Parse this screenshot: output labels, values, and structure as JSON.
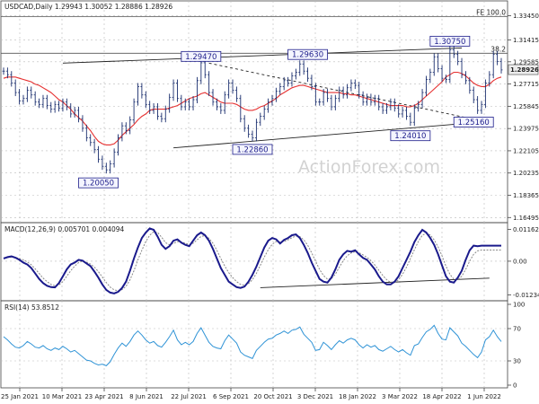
{
  "chart_data": {
    "type": "line",
    "symbol_header": "USDCAD,Daily  1.29943 1.30052 1.28886 1.28926",
    "watermark": "ActionForex.com",
    "colors": {
      "price": "#1a2e6e",
      "ema": "#e63030",
      "macd": "#1a1a8c",
      "signal": "#888888",
      "rsi": "#2f93d6",
      "trend": "#222222"
    },
    "x_tick_labels": [
      "25 Jan 2021",
      "10 Mar 2021",
      "23 Apr 2021",
      "8 Jun 2021",
      "22 Jul 2021",
      "6 Sep 2021",
      "20 Oct 2021",
      "3 Dec 2021",
      "18 Jan 2022",
      "3 Mar 2022",
      "18 Apr 2022",
      "1 Jun 2022"
    ],
    "price_panel": {
      "y_ticks": [
        "1.33450",
        "1.31415",
        "1.29585",
        "1.27715",
        "1.25845",
        "1.23975",
        "1.22105",
        "1.20235",
        "1.18365",
        "1.16495"
      ],
      "ylim": [
        1.1629,
        1.344
      ],
      "current_price": "1.28926",
      "fe_label": "FE 100.0",
      "fe_level": 1.3338,
      "fib_label": "38.2",
      "fib_level": 1.303,
      "annotations": [
        {
          "text": "1.20050",
          "price": 1.2005,
          "date_index": 24
        },
        {
          "text": "1.29470",
          "price": 1.2947,
          "date_index": 50
        },
        {
          "text": "1.22860",
          "price": 1.2286,
          "date_index": 63
        },
        {
          "text": "1.29630",
          "price": 1.2963,
          "date_index": 77
        },
        {
          "text": "1.24010",
          "price": 1.2401,
          "date_index": 103
        },
        {
          "text": "1.30750",
          "price": 1.3075,
          "date_index": 113
        },
        {
          "text": "1.25160",
          "price": 1.2516,
          "date_index": 119
        }
      ],
      "trendlines": [
        {
          "from": [
            15,
            1.2947
          ],
          "to": [
            116,
            1.3075
          ]
        },
        {
          "from": [
            43,
            1.2235
          ],
          "to": [
            122,
            1.2455
          ]
        },
        {
          "from": [
            52,
            1.2947
          ],
          "to": [
            122,
            1.2455
          ]
        }
      ],
      "close": [
        1.288,
        1.285,
        1.278,
        1.27,
        1.263,
        1.265,
        1.272,
        1.268,
        1.262,
        1.26,
        1.265,
        1.259,
        1.256,
        1.26,
        1.257,
        1.262,
        1.258,
        1.252,
        1.255,
        1.248,
        1.24,
        1.232,
        1.228,
        1.222,
        1.214,
        1.208,
        1.205,
        1.21,
        1.22,
        1.232,
        1.242,
        1.238,
        1.247,
        1.262,
        1.275,
        1.268,
        1.26,
        1.255,
        1.258,
        1.25,
        1.248,
        1.256,
        1.266,
        1.278,
        1.265,
        1.258,
        1.262,
        1.258,
        1.264,
        1.28,
        1.295,
        1.285,
        1.27,
        1.262,
        1.258,
        1.255,
        1.268,
        1.278,
        1.272,
        1.265,
        1.248,
        1.24,
        1.235,
        1.232,
        1.245,
        1.25,
        1.256,
        1.262,
        1.265,
        1.271,
        1.275,
        1.28,
        1.278,
        1.284,
        1.287,
        1.294,
        1.288,
        1.282,
        1.275,
        1.262,
        1.262,
        1.27,
        1.265,
        1.258,
        1.265,
        1.272,
        1.268,
        1.274,
        1.278,
        1.276,
        1.268,
        1.262,
        1.266,
        1.262,
        1.265,
        1.258,
        1.255,
        1.258,
        1.262,
        1.257,
        1.252,
        1.255,
        1.25,
        1.245,
        1.257,
        1.26,
        1.27,
        1.281,
        1.287,
        1.3,
        1.29,
        1.282,
        1.281,
        1.306,
        1.302,
        1.296,
        1.285,
        1.28,
        1.272,
        1.264,
        1.255,
        1.26,
        1.278,
        1.285,
        1.302,
        1.296,
        1.289
      ],
      "ema": [
        1.282,
        1.283,
        1.283,
        1.283,
        1.282,
        1.281,
        1.28,
        1.279,
        1.277,
        1.276,
        1.274,
        1.272,
        1.27,
        1.267,
        1.264,
        1.262,
        1.259,
        1.256,
        1.252,
        1.249,
        1.246,
        1.242,
        1.238,
        1.233,
        1.229,
        1.227,
        1.226,
        1.226,
        1.227,
        1.23,
        1.234,
        1.237,
        1.24,
        1.243,
        1.247,
        1.25,
        1.252,
        1.255,
        1.256,
        1.256,
        1.256,
        1.256,
        1.257,
        1.258,
        1.259,
        1.261,
        1.263,
        1.265,
        1.266,
        1.267,
        1.269,
        1.27,
        1.268,
        1.266,
        1.264,
        1.262,
        1.261,
        1.261,
        1.261,
        1.26,
        1.258,
        1.256,
        1.255,
        1.255,
        1.256,
        1.258,
        1.259,
        1.261,
        1.263,
        1.265,
        1.268,
        1.27,
        1.272,
        1.274,
        1.275,
        1.276,
        1.276,
        1.275,
        1.274,
        1.273,
        1.272,
        1.271,
        1.27,
        1.27,
        1.27,
        1.27,
        1.269,
        1.269,
        1.268,
        1.268,
        1.267,
        1.266,
        1.265,
        1.264,
        1.263,
        1.262,
        1.261,
        1.26,
        1.259,
        1.259,
        1.259,
        1.259,
        1.258,
        1.258,
        1.259,
        1.261,
        1.264,
        1.267,
        1.27,
        1.273,
        1.276,
        1.279,
        1.283,
        1.285,
        1.287,
        1.287,
        1.286,
        1.284,
        1.281,
        1.278,
        1.276,
        1.275,
        1.275,
        1.277,
        1.28,
        1.282,
        1.283
      ]
    },
    "macd_panel": {
      "label": "MACD(12,26,9) 0.005701 0.004094",
      "y_ticks": [
        "0.011629",
        "0.00",
        "-0.012348"
      ],
      "ylim": [
        -0.0135,
        0.0128
      ],
      "trendline": {
        "from": [
          65,
          -0.0097
        ],
        "to": [
          123,
          -0.0062
        ]
      },
      "macd": [
        0.001,
        0.0015,
        0.0018,
        0.0013,
        0.0005,
        -0.0005,
        -0.0012,
        -0.0025,
        -0.0045,
        -0.0065,
        -0.008,
        -0.009,
        -0.0095,
        -0.0096,
        -0.008,
        -0.0055,
        -0.003,
        -0.0012,
        -0.0005,
        0.0005,
        0.0002,
        -0.0008,
        -0.0018,
        -0.0038,
        -0.006,
        -0.0085,
        -0.0105,
        -0.0115,
        -0.0118,
        -0.0112,
        -0.0098,
        -0.0075,
        -0.0035,
        0.001,
        0.005,
        0.0085,
        0.0105,
        0.012,
        0.0115,
        0.009,
        0.006,
        0.0045,
        0.0055,
        0.0075,
        0.008,
        0.0068,
        0.006,
        0.0055,
        0.0075,
        0.0095,
        0.0105,
        0.0095,
        0.0075,
        0.0045,
        0.001,
        -0.0025,
        -0.005,
        -0.0075,
        -0.0085,
        -0.0095,
        -0.0098,
        -0.0093,
        -0.0075,
        -0.005,
        -0.002,
        0.0015,
        0.005,
        0.0075,
        0.0085,
        0.008,
        0.0065,
        0.0078,
        0.0085,
        0.0095,
        0.0098,
        0.0085,
        0.006,
        0.003,
        -0.0005,
        -0.0035,
        -0.0065,
        -0.0075,
        -0.0078,
        -0.006,
        -0.003,
        0.0005,
        0.0025,
        0.0038,
        0.0035,
        0.004,
        0.0025,
        0.0012,
        0.0005,
        -0.0012,
        -0.003,
        -0.0055,
        -0.0075,
        -0.0085,
        -0.0085,
        -0.0075,
        -0.0055,
        -0.0025,
        0.0005,
        0.0035,
        0.007,
        0.0095,
        0.0115,
        0.0105,
        0.0085,
        0.006,
        0.0025,
        -0.0015,
        -0.0055,
        -0.0075,
        -0.0078,
        -0.006,
        -0.0035,
        0.0005,
        0.004,
        0.0057,
        0.0055,
        0.0057,
        0.0057,
        0.0057,
        0.0057,
        0.0057,
        0.0057
      ],
      "signal": [
        0.0012,
        0.0013,
        0.0015,
        0.0014,
        0.001,
        0.0005,
        -0.0003,
        -0.0013,
        -0.0028,
        -0.0045,
        -0.0062,
        -0.0075,
        -0.0085,
        -0.009,
        -0.0087,
        -0.0075,
        -0.0055,
        -0.0035,
        -0.0018,
        -0.0005,
        0.0,
        -0.0004,
        -0.001,
        -0.0022,
        -0.0038,
        -0.0058,
        -0.0078,
        -0.0095,
        -0.0105,
        -0.0108,
        -0.0104,
        -0.0092,
        -0.0068,
        -0.0035,
        0.0005,
        0.004,
        0.0072,
        0.0095,
        0.0108,
        0.0105,
        0.0088,
        0.0068,
        0.006,
        0.0065,
        0.0072,
        0.007,
        0.0066,
        0.0061,
        0.0066,
        0.0078,
        0.0091,
        0.0093,
        0.0084,
        0.0066,
        0.004,
        0.001,
        -0.0018,
        -0.0042,
        -0.006,
        -0.0075,
        -0.0085,
        -0.0088,
        -0.0082,
        -0.0068,
        -0.0045,
        -0.0015,
        0.0015,
        0.0042,
        0.0062,
        0.0072,
        0.007,
        0.0072,
        0.0078,
        0.0086,
        0.0092,
        0.009,
        0.0078,
        0.0058,
        0.003,
        0.0,
        -0.003,
        -0.0052,
        -0.0066,
        -0.0064,
        -0.0048,
        -0.0022,
        0.0002,
        0.002,
        0.003,
        0.0035,
        0.0031,
        0.0023,
        0.0014,
        0.0002,
        -0.0014,
        -0.0033,
        -0.0052,
        -0.0068,
        -0.0078,
        -0.0078,
        -0.0068,
        -0.0048,
        -0.0022,
        0.001,
        0.0042,
        0.0072,
        0.0095,
        0.0102,
        0.0096,
        0.0078,
        0.0052,
        0.002,
        -0.0018,
        -0.0048,
        -0.0066,
        -0.0067,
        -0.0055,
        -0.003,
        0.0,
        0.0025,
        0.0038,
        0.0041,
        0.0041,
        0.0041,
        0.0041,
        0.0041,
        0.0041
      ],
      "signal_last": "0.004094"
    },
    "rsi_panel": {
      "label": "RSI(14) 53.8512",
      "y_ticks": [
        "100",
        "70",
        "30",
        "0"
      ],
      "ylim": [
        0,
        100
      ],
      "rsi": [
        60,
        56,
        51,
        47,
        46,
        49,
        54,
        51,
        47,
        46,
        49,
        45,
        43,
        46,
        44,
        48,
        45,
        41,
        43,
        39,
        35,
        31,
        30,
        27,
        25,
        26,
        24,
        29,
        38,
        46,
        52,
        48,
        54,
        62,
        67,
        62,
        56,
        52,
        54,
        49,
        47,
        53,
        60,
        68,
        56,
        50,
        53,
        50,
        54,
        64,
        71,
        62,
        53,
        48,
        46,
        45,
        55,
        62,
        57,
        52,
        41,
        37,
        35,
        33,
        43,
        48,
        53,
        57,
        58,
        62,
        64,
        67,
        64,
        68,
        69,
        72,
        63,
        58,
        53,
        43,
        44,
        53,
        49,
        44,
        50,
        55,
        52,
        56,
        58,
        56,
        50,
        46,
        50,
        47,
        49,
        44,
        42,
        45,
        48,
        44,
        41,
        44,
        40,
        37,
        49,
        51,
        59,
        66,
        69,
        74,
        64,
        57,
        56,
        71,
        66,
        61,
        52,
        48,
        43,
        38,
        34,
        41,
        56,
        60,
        68,
        60,
        54
      ]
    }
  }
}
